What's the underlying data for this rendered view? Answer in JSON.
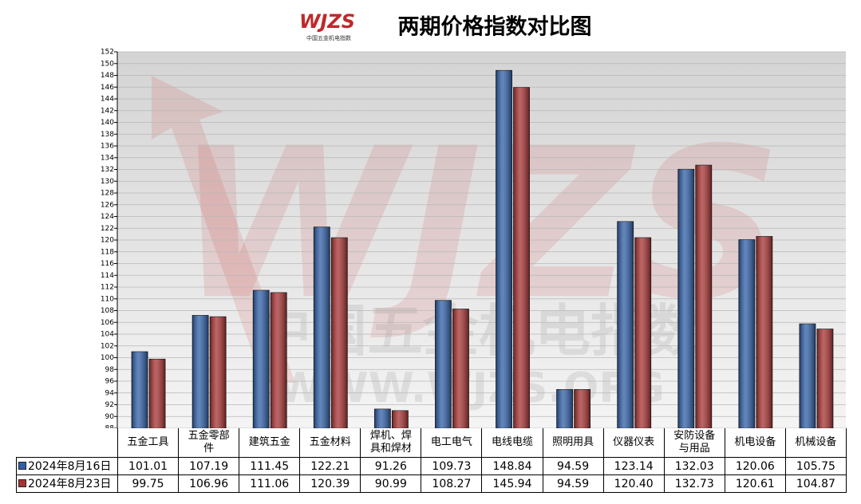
{
  "chart_data": {
    "type": "bar",
    "title": "两期价格指数对比图",
    "logo_text": "WJZS",
    "logo_subtext": "中国五金机电指数",
    "watermark": [
      "中国五金机电指数",
      "WWW.WJZS.ORG"
    ],
    "categories": [
      "五金工具",
      "五金零部件",
      "建筑五金",
      "五金材料",
      "焊机、焊具和焊材",
      "电工电气",
      "电线电缆",
      "照明用具",
      "仪器仪表",
      "安防设备与用品",
      "机电设备",
      "机械设备"
    ],
    "series": [
      {
        "name": "2024年8月16日",
        "color": "#2f5fa8",
        "values": [
          101.01,
          107.19,
          111.45,
          122.21,
          91.26,
          109.73,
          148.84,
          94.59,
          123.14,
          132.03,
          120.06,
          105.75
        ],
        "value_labels": [
          "101.01",
          "107.19",
          "111.45",
          "122.21",
          "91.26",
          "109.73",
          "148.84",
          "94.59",
          "123.14",
          "132.03",
          "120.06",
          "105.75"
        ]
      },
      {
        "name": "2024年8月23日",
        "color": "#a83232",
        "values": [
          99.75,
          106.96,
          111.06,
          120.39,
          90.99,
          108.27,
          145.94,
          94.59,
          120.4,
          132.73,
          120.61,
          104.87
        ],
        "value_labels": [
          "99.75",
          "106.96",
          "111.06",
          "120.39",
          "90.99",
          "108.27",
          "145.94",
          "94.59",
          "120.40",
          "132.73",
          "120.61",
          "104.87"
        ]
      }
    ],
    "ylim": [
      88,
      152
    ],
    "yticks": [
      88,
      90,
      92,
      94,
      96,
      98,
      100,
      102,
      104,
      106,
      108,
      110,
      112,
      114,
      116,
      118,
      120,
      122,
      124,
      126,
      128,
      130,
      132,
      134,
      136,
      138,
      140,
      142,
      144,
      146,
      148,
      150,
      152
    ],
    "grid": true
  }
}
